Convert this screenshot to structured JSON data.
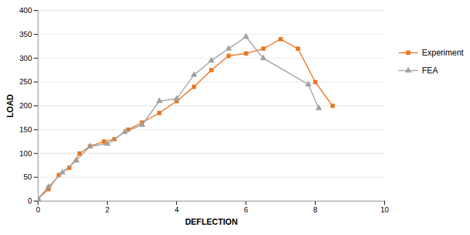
{
  "chart_data": {
    "type": "line",
    "xlabel": "DEFLECTION",
    "ylabel": "LOAD",
    "series": [
      {
        "name": "Experiment",
        "color": "#E87722",
        "marker": "square",
        "x": [
          0,
          0.3,
          0.6,
          0.9,
          1.2,
          1.5,
          1.9,
          2.2,
          2.6,
          3.0,
          3.5,
          4.0,
          4.5,
          5.0,
          5.5,
          6.0,
          6.5,
          7.0,
          7.5,
          8.0,
          8.5
        ],
        "values": [
          5,
          25,
          55,
          70,
          100,
          115,
          125,
          130,
          150,
          165,
          185,
          210,
          240,
          275,
          305,
          310,
          320,
          340,
          320,
          250,
          200
        ]
      },
      {
        "name": "FEA",
        "color": "#A0A0A0",
        "marker": "triangle",
        "x": [
          0,
          0.3,
          0.7,
          1.1,
          1.5,
          2.0,
          2.5,
          3.0,
          3.5,
          4.0,
          4.5,
          5.0,
          5.5,
          6.0,
          6.5,
          7.8,
          8.1
        ],
        "values": [
          5,
          30,
          60,
          85,
          115,
          120,
          145,
          160,
          210,
          215,
          265,
          295,
          320,
          345,
          300,
          245,
          195
        ]
      }
    ],
    "xlim": [
      0,
      10
    ],
    "ylim": [
      0,
      400
    ],
    "xticks": [
      0,
      2,
      4,
      6,
      8,
      10
    ],
    "yticks": [
      0,
      50,
      100,
      150,
      200,
      250,
      300,
      350,
      400
    ],
    "grid": "y",
    "legend": "right"
  }
}
